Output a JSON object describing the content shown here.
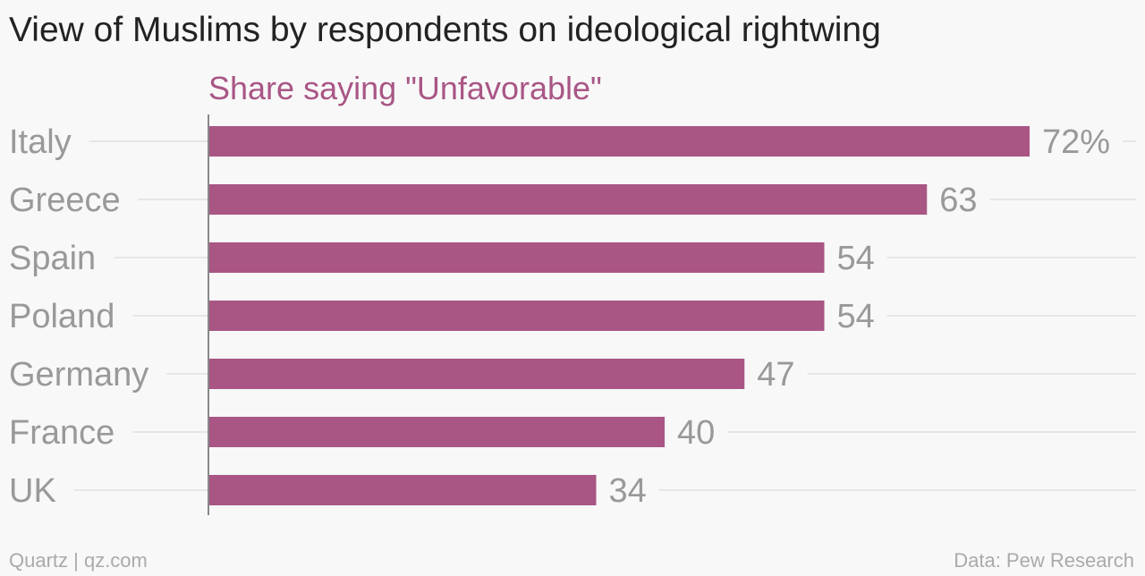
{
  "title": "View of Muslims by respondents on ideological rightwing",
  "footer": {
    "source_left": "Quartz | qz.com",
    "source_right": "Data: Pew Research"
  },
  "colors": {
    "bar": "#a95685",
    "subtitle": "#a95685",
    "title": "#222222",
    "labels": "#999999",
    "gridline": "#e6e6e6",
    "axis": "#888888",
    "background": "#f8f8f8"
  },
  "chart_data": {
    "type": "bar",
    "orientation": "horizontal",
    "subtitle": "Share saying \"Unfavorable\"",
    "categories": [
      "Italy",
      "Greece",
      "Spain",
      "Poland",
      "Germany",
      "France",
      "UK"
    ],
    "values": [
      72,
      63,
      54,
      54,
      47,
      40,
      34
    ],
    "value_labels": [
      "72%",
      "63",
      "54",
      "54",
      "47",
      "40",
      "34"
    ],
    "xlim": [
      0,
      80
    ],
    "grid": true,
    "legend": "none"
  }
}
